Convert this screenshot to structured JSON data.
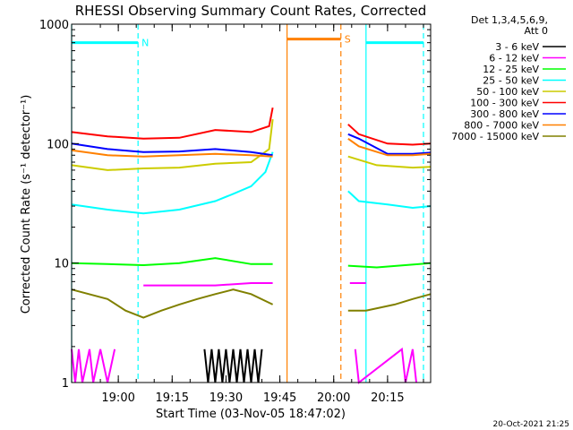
{
  "chart_data": {
    "type": "line",
    "title": "RHESSI Observing Summary Count Rates, Corrected",
    "xlabel": "Start Time (03-Nov-05 18:47:02)",
    "ylabel": "Corrected Count Rate (s⁻¹ detector⁻¹)",
    "ylog": true,
    "xlim": [
      0,
      100
    ],
    "ylim": [
      1,
      1000
    ],
    "xticks": [
      {
        "x": 13,
        "label": "19:00"
      },
      {
        "x": 28,
        "label": "19:15"
      },
      {
        "x": 43,
        "label": "19:30"
      },
      {
        "x": 58,
        "label": "19:45"
      },
      {
        "x": 73,
        "label": "20:00"
      },
      {
        "x": 88,
        "label": "20:15"
      }
    ],
    "yticks": [
      {
        "y": 1,
        "label": "1"
      },
      {
        "y": 10,
        "label": "10"
      },
      {
        "y": 100,
        "label": "100"
      },
      {
        "y": 1000,
        "label": "1000"
      }
    ],
    "legend_header": [
      "Det 1,3,4,5,6,9,",
      "Att 0"
    ],
    "legend_position": "right",
    "series": [
      {
        "name": "3 - 6 keV",
        "color": "#000000",
        "segments": [
          [
            [
              37,
              1.9
            ],
            [
              38,
              1.0
            ],
            [
              39,
              1.9
            ],
            [
              40,
              1.0
            ],
            [
              41,
              1.9
            ],
            [
              42,
              1.0
            ],
            [
              43,
              1.9
            ],
            [
              44,
              1.0
            ],
            [
              45,
              1.9
            ],
            [
              46,
              1.0
            ],
            [
              47,
              1.9
            ],
            [
              48,
              1.0
            ],
            [
              49,
              1.9
            ],
            [
              50,
              1.0
            ],
            [
              51,
              1.9
            ],
            [
              52,
              1.0
            ],
            [
              53,
              1.9
            ]
          ]
        ]
      },
      {
        "name": "6 - 12 keV",
        "color": "#ff00ff",
        "segments": [
          [
            [
              0,
              1.9
            ],
            [
              1,
              1.0
            ],
            [
              2,
              1.9
            ],
            [
              3,
              1.0
            ],
            [
              5,
              1.9
            ],
            [
              6,
              1.0
            ],
            [
              8,
              1.9
            ],
            [
              10,
              1.0
            ],
            [
              12,
              1.9
            ]
          ],
          [
            [
              20,
              6.5
            ],
            [
              30,
              6.5
            ],
            [
              40,
              6.5
            ],
            [
              50,
              6.8
            ],
            [
              56,
              6.8
            ]
          ],
          [
            [
              77.5,
              6.8
            ],
            [
              82,
              6.8
            ]
          ],
          [
            [
              79,
              1.9
            ],
            [
              80,
              1.0
            ],
            [
              92,
              1.9
            ],
            [
              93,
              1.0
            ],
            [
              95,
              1.9
            ],
            [
              96,
              1.0
            ]
          ]
        ]
      },
      {
        "name": "12 - 25 keV",
        "color": "#00ff00",
        "segments": [
          [
            [
              0,
              10
            ],
            [
              10,
              9.8
            ],
            [
              20,
              9.6
            ],
            [
              30,
              10
            ],
            [
              40,
              11
            ],
            [
              50,
              9.8
            ],
            [
              56,
              9.8
            ]
          ],
          [
            [
              77,
              9.5
            ],
            [
              85,
              9.2
            ],
            [
              100,
              10
            ]
          ]
        ]
      },
      {
        "name": "25 - 50 keV",
        "color": "#00ffff",
        "segments": [
          [
            [
              0,
              31
            ],
            [
              10,
              28
            ],
            [
              20,
              26
            ],
            [
              30,
              28
            ],
            [
              40,
              33
            ],
            [
              45,
              38
            ],
            [
              50,
              44
            ],
            [
              54,
              58
            ],
            [
              56,
              85
            ]
          ],
          [
            [
              77,
              40
            ],
            [
              80,
              33
            ],
            [
              88,
              31
            ],
            [
              95,
              29
            ],
            [
              100,
              30
            ]
          ]
        ]
      },
      {
        "name": "50 - 100 keV",
        "color": "#cccc00",
        "segments": [
          [
            [
              0,
              66
            ],
            [
              10,
              60
            ],
            [
              20,
              62
            ],
            [
              30,
              63
            ],
            [
              40,
              68
            ],
            [
              50,
              70
            ],
            [
              55,
              90
            ],
            [
              56,
              160
            ]
          ],
          [
            [
              77,
              78
            ],
            [
              85,
              66
            ],
            [
              95,
              63
            ],
            [
              100,
              64
            ]
          ]
        ]
      },
      {
        "name": "100 - 300 keV",
        "color": "#ff0000",
        "segments": [
          [
            [
              0,
              125
            ],
            [
              10,
              115
            ],
            [
              20,
              110
            ],
            [
              30,
              112
            ],
            [
              40,
              130
            ],
            [
              50,
              125
            ],
            [
              55,
              140
            ],
            [
              56,
              200
            ]
          ],
          [
            [
              77,
              145
            ],
            [
              80,
              120
            ],
            [
              88,
              100
            ],
            [
              95,
              98
            ],
            [
              100,
              100
            ]
          ]
        ]
      },
      {
        "name": "300 - 800 keV",
        "color": "#0000ff",
        "segments": [
          [
            [
              0,
              100
            ],
            [
              10,
              90
            ],
            [
              20,
              85
            ],
            [
              30,
              86
            ],
            [
              40,
              90
            ],
            [
              50,
              85
            ],
            [
              56,
              80
            ]
          ],
          [
            [
              77,
              120
            ],
            [
              80,
              110
            ],
            [
              88,
              82
            ],
            [
              95,
              82
            ],
            [
              100,
              84
            ]
          ]
        ]
      },
      {
        "name": "800 - 7000 keV",
        "color": "#ff8000",
        "segments": [
          [
            [
              0,
              88
            ],
            [
              10,
              80
            ],
            [
              20,
              78
            ],
            [
              30,
              80
            ],
            [
              40,
              82
            ],
            [
              50,
              80
            ],
            [
              56,
              78
            ]
          ],
          [
            [
              77,
              110
            ],
            [
              80,
              95
            ],
            [
              88,
              80
            ],
            [
              95,
              80
            ],
            [
              100,
              82
            ]
          ]
        ]
      },
      {
        "name": "7000 - 15000 keV",
        "color": "#808000",
        "segments": [
          [
            [
              0,
              6
            ],
            [
              10,
              5
            ],
            [
              15,
              4
            ],
            [
              20,
              3.5
            ],
            [
              25,
              4
            ],
            [
              30,
              4.5
            ],
            [
              35,
              5
            ],
            [
              40,
              5.5
            ],
            [
              45,
              6
            ],
            [
              50,
              5.5
            ],
            [
              56,
              4.5
            ]
          ],
          [
            [
              77,
              4
            ],
            [
              82,
              4
            ],
            [
              90,
              4.5
            ],
            [
              95,
              5
            ],
            [
              100,
              5.5
            ]
          ]
        ]
      }
    ],
    "orbit_bars": [
      {
        "label": "N",
        "color": "#00ffff",
        "x_start": 0,
        "x_end": 18.5,
        "y": 700
      },
      {
        "label": "",
        "color": "#00ffff",
        "x_start": 82,
        "x_end": 98,
        "y": 700
      },
      {
        "label": "S",
        "color": "#ff8000",
        "x_start": 60,
        "x_end": 75,
        "y": 750
      }
    ],
    "markers": [
      {
        "x": 0,
        "color": "#00ffff",
        "style": "solid"
      },
      {
        "x": 18.5,
        "color": "#00ffff",
        "style": "dashed"
      },
      {
        "x": 60,
        "color": "#ff8000",
        "style": "solid"
      },
      {
        "x": 75,
        "color": "#ff8000",
        "style": "dashed"
      },
      {
        "x": 82,
        "color": "#00ffff",
        "style": "solid"
      },
      {
        "x": 98,
        "color": "#00ffff",
        "style": "dashed"
      }
    ]
  },
  "footer_date": "20-Oct-2021 21:25"
}
